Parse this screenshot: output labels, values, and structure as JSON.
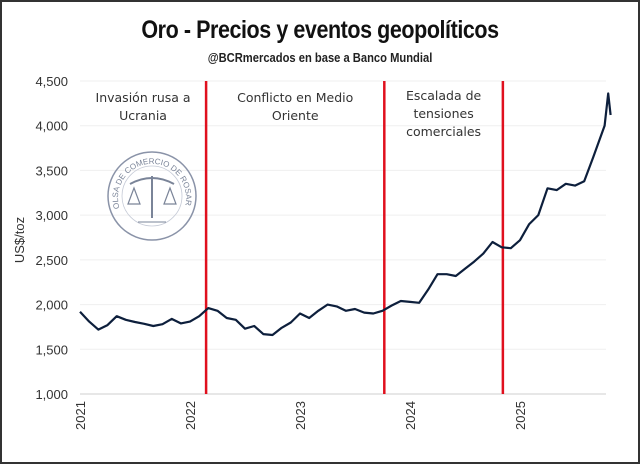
{
  "chart_data": {
    "type": "line",
    "title": "Oro - Precios y eventos geopolíticos",
    "subtitle": "@BCRmercados en base a Banco Mundial",
    "ylabel": "US$/toz",
    "xlabel": "",
    "ylim": [
      1000,
      4500
    ],
    "yticks": [
      "1,000",
      "1,500",
      "2,000",
      "2,500",
      "3,000",
      "3,500",
      "4,000",
      "4,500"
    ],
    "ytick_values": [
      1000,
      1500,
      2000,
      2500,
      3000,
      3500,
      4000,
      4500
    ],
    "xticks": [
      "2021",
      "2022",
      "2023",
      "2024",
      "2025"
    ],
    "xlim": [
      "2021-01",
      "2025-10"
    ],
    "grid": true,
    "line_color": "#0d1f3c",
    "event_color": "#e0101e",
    "series": [
      {
        "x": [
          "2021-01",
          "2021-02",
          "2021-03",
          "2021-04",
          "2021-05",
          "2021-06",
          "2021-07",
          "2021-08",
          "2021-09",
          "2021-10",
          "2021-11",
          "2021-12",
          "2022-01",
          "2022-02",
          "2022-03",
          "2022-04",
          "2022-05",
          "2022-06",
          "2022-07",
          "2022-08",
          "2022-09",
          "2022-10",
          "2022-11",
          "2022-12",
          "2023-01",
          "2023-02",
          "2023-03",
          "2023-04",
          "2023-05",
          "2023-06",
          "2023-07",
          "2023-08",
          "2023-09",
          "2023-10",
          "2023-11",
          "2023-12",
          "2024-01",
          "2024-02",
          "2024-03",
          "2024-04",
          "2024-05",
          "2024-06",
          "2024-07",
          "2024-08",
          "2024-09",
          "2024-10",
          "2024-11",
          "2024-12",
          "2025-01",
          "2025-02",
          "2025-03",
          "2025-04",
          "2025-05",
          "2025-06",
          "2025-07",
          "2025-08",
          "2025-09",
          "2025-10-08",
          "2025-10-20",
          "2025-10-28"
        ],
        "y": [
          1920,
          1810,
          1720,
          1770,
          1870,
          1830,
          1805,
          1785,
          1760,
          1780,
          1840,
          1790,
          1810,
          1870,
          1960,
          1930,
          1850,
          1830,
          1730,
          1760,
          1670,
          1660,
          1740,
          1800,
          1900,
          1850,
          1930,
          2000,
          1980,
          1930,
          1950,
          1910,
          1900,
          1930,
          1990,
          2040,
          2030,
          2020,
          2170,
          2340,
          2340,
          2320,
          2400,
          2480,
          2570,
          2700,
          2640,
          2630,
          2720,
          2900,
          3000,
          3300,
          3280,
          3350,
          3330,
          3380,
          3650,
          4000,
          4360,
          4120
        ]
      }
    ],
    "events": [
      {
        "date": "2022-02-24",
        "label": [
          "Invasión rusa a",
          "Ucrania"
        ]
      },
      {
        "date": "2023-10-07",
        "label": [
          "Conflicto en Medio",
          "Oriente"
        ]
      },
      {
        "date": "2024-11-05",
        "label": [
          "Escalada de",
          "tensiones",
          "comerciales"
        ]
      }
    ]
  },
  "logo": {
    "text": "BOLSA DE COMERCIO DE ROSARIO"
  }
}
